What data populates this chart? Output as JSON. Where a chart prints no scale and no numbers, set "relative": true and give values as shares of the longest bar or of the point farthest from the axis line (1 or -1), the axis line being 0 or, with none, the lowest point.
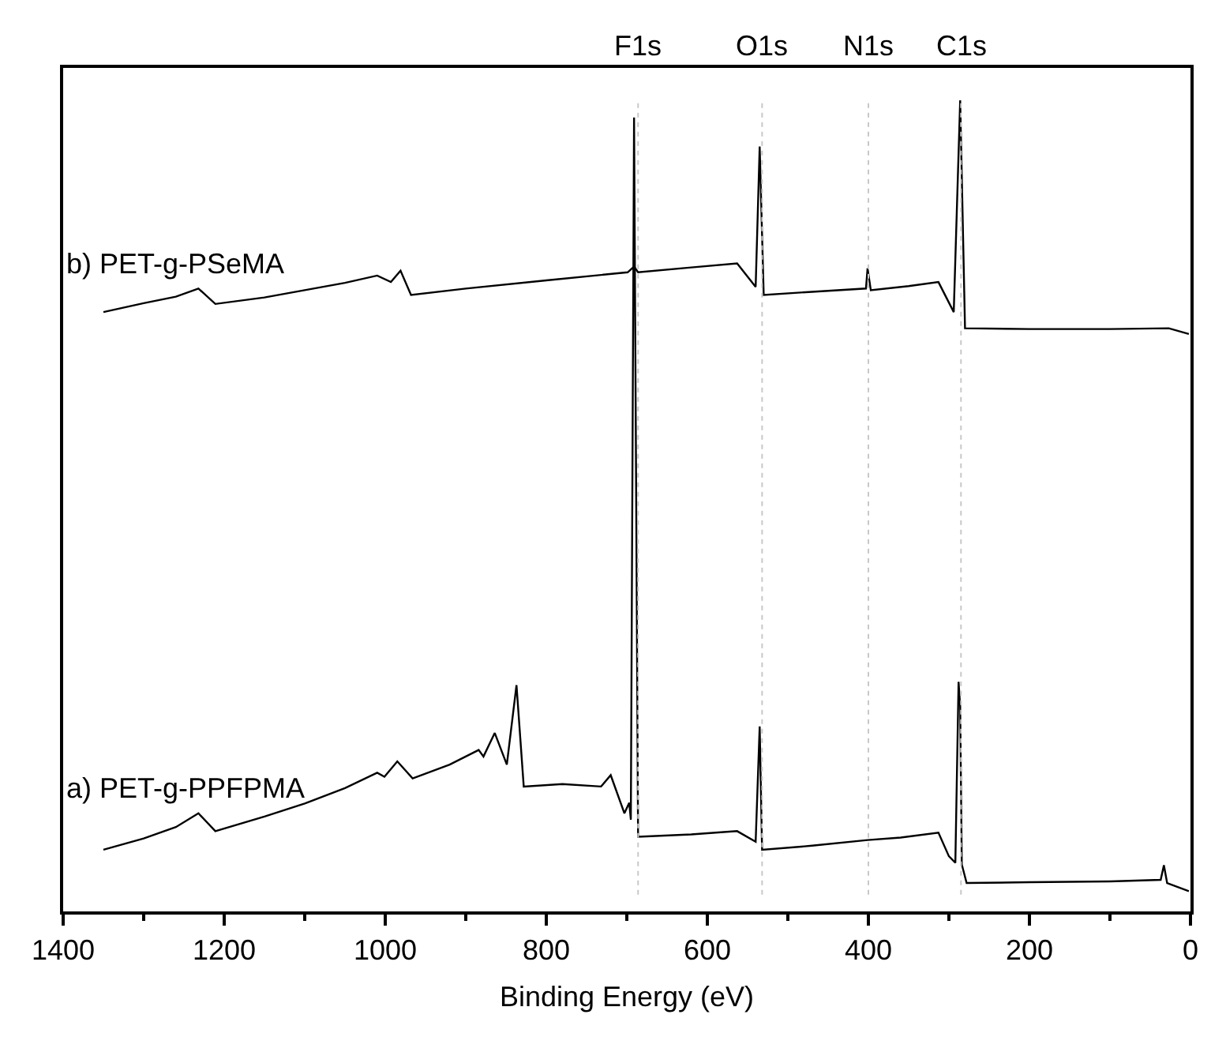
{
  "chart_data": {
    "type": "line",
    "relative": true,
    "xlabel": "Binding Energy (eV)",
    "xlim": [
      1400,
      0
    ],
    "xticks": [
      1400,
      {
        "value": 1300,
        "label": null
      },
      1200,
      {
        "value": 1100,
        "label": null
      },
      1000,
      {
        "value": 900,
        "label": null
      },
      800,
      {
        "value": 700,
        "label": null
      },
      600,
      {
        "value": 500,
        "label": null
      },
      400,
      {
        "value": 300,
        "label": null
      },
      200,
      {
        "value": 100,
        "label": null
      },
      0
    ],
    "tick_labels": "x",
    "legend": false,
    "marker": "none",
    "line_style": "solid",
    "ref_lines": [
      {
        "axis": "x",
        "value": 686,
        "label": "F1s",
        "color": "#c8c8c8",
        "line_style": "dotted"
      },
      {
        "axis": "x",
        "value": 532,
        "label": "O1s",
        "color": "#c8c8c8",
        "line_style": "dotted"
      },
      {
        "axis": "x",
        "value": 400,
        "label": "N1s",
        "color": "#c8c8c8",
        "line_style": "dotted"
      },
      {
        "axis": "x",
        "value": 285,
        "label": "C1s",
        "color": "#c8c8c8",
        "line_style": "dotted"
      }
    ],
    "series": [
      {
        "name": "a) PET-g-PPFPMA",
        "color": "#000000",
        "x": [
          1350,
          1300,
          1260,
          1232,
          1211,
          1150,
          1100,
          1050,
          1010,
          1001,
          985,
          966,
          920,
          884,
          878,
          864,
          849,
          837,
          828,
          780,
          732,
          720,
          703,
          697,
          695,
          691,
          686,
          620,
          563,
          540,
          535,
          532,
          470,
          401,
          360,
          313,
          300,
          292,
          288,
          286,
          284,
          278,
          200,
          100,
          37,
          33,
          29,
          2
        ],
        "values": [
          0.076,
          0.09,
          0.104,
          0.121,
          0.099,
          0.117,
          0.133,
          0.152,
          0.171,
          0.166,
          0.185,
          0.164,
          0.181,
          0.199,
          0.191,
          0.22,
          0.181,
          0.279,
          0.154,
          0.157,
          0.154,
          0.168,
          0.121,
          0.134,
          0.113,
          0.979,
          0.092,
          0.095,
          0.099,
          0.086,
          0.228,
          0.076,
          0.081,
          0.088,
          0.091,
          0.097,
          0.068,
          0.06,
          0.283,
          0.253,
          0.058,
          0.035,
          0.036,
          0.037,
          0.039,
          0.057,
          0.035,
          0.025
        ]
      },
      {
        "name": "b) PET-g-PSeMA",
        "color": "#000000",
        "x": [
          1350,
          1300,
          1260,
          1232,
          1211,
          1150,
          1100,
          1050,
          1010,
          993,
          981,
          968,
          900,
          800,
          699,
          691,
          686,
          620,
          563,
          540,
          535,
          530,
          470,
          403,
          401,
          397,
          350,
          313,
          294,
          286,
          280,
          200,
          100,
          27,
          2
        ],
        "values": [
          0.739,
          0.75,
          0.758,
          0.768,
          0.749,
          0.757,
          0.766,
          0.775,
          0.784,
          0.776,
          0.79,
          0.76,
          0.768,
          0.778,
          0.788,
          0.795,
          0.788,
          0.794,
          0.799,
          0.77,
          0.943,
          0.76,
          0.764,
          0.768,
          0.793,
          0.766,
          0.771,
          0.776,
          0.739,
          1.0,
          0.719,
          0.718,
          0.718,
          0.719,
          0.712
        ]
      }
    ]
  }
}
